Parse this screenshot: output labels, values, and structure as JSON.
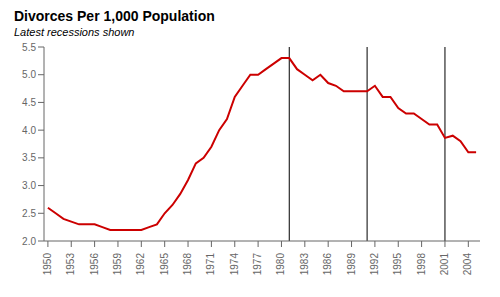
{
  "chart_data": {
    "type": "line",
    "title": "Divorces Per 1,000 Population",
    "subtitle": "Latest recessions shown",
    "x": [
      1950,
      1951,
      1952,
      1953,
      1954,
      1955,
      1956,
      1957,
      1958,
      1959,
      1960,
      1961,
      1962,
      1963,
      1964,
      1965,
      1966,
      1967,
      1968,
      1969,
      1970,
      1971,
      1972,
      1973,
      1974,
      1975,
      1976,
      1977,
      1978,
      1979,
      1980,
      1981,
      1982,
      1983,
      1984,
      1985,
      1986,
      1987,
      1988,
      1989,
      1990,
      1991,
      1992,
      1993,
      1994,
      1995,
      1996,
      1997,
      1998,
      1999,
      2000,
      2001,
      2002,
      2003,
      2004,
      2005
    ],
    "values": [
      2.6,
      2.5,
      2.4,
      2.35,
      2.3,
      2.3,
      2.3,
      2.25,
      2.2,
      2.2,
      2.2,
      2.2,
      2.2,
      2.25,
      2.3,
      2.5,
      2.65,
      2.85,
      3.1,
      3.4,
      3.5,
      3.7,
      4.0,
      4.2,
      4.6,
      4.8,
      5.0,
      5.0,
      5.1,
      5.2,
      5.3,
      5.3,
      5.1,
      5.0,
      4.9,
      5.0,
      4.85,
      4.8,
      4.7,
      4.7,
      4.7,
      4.7,
      4.8,
      4.6,
      4.6,
      4.4,
      4.3,
      4.3,
      4.2,
      4.1,
      4.1,
      3.86,
      3.9,
      3.8,
      3.6,
      3.6
    ],
    "color": "#cc0000",
    "vlines": {
      "values": [
        1981,
        1991,
        2001
      ],
      "color": "#000000"
    },
    "xlim": [
      1949.5,
      2005.5
    ],
    "xticks": [
      1950,
      1953,
      1956,
      1959,
      1962,
      1965,
      1968,
      1971,
      1974,
      1977,
      1980,
      1983,
      1986,
      1989,
      1992,
      1995,
      1998,
      2001,
      2004
    ],
    "ylim": [
      2.0,
      5.5
    ],
    "yticks": [
      {
        "value": 2.0,
        "label": "2.0"
      },
      2.5,
      {
        "value": 3.0,
        "label": "3.0"
      },
      3.5,
      {
        "value": 4.0,
        "label": "4.0"
      },
      4.5,
      {
        "value": 5.0,
        "label": "5.0"
      },
      5.5
    ],
    "grid": false
  }
}
